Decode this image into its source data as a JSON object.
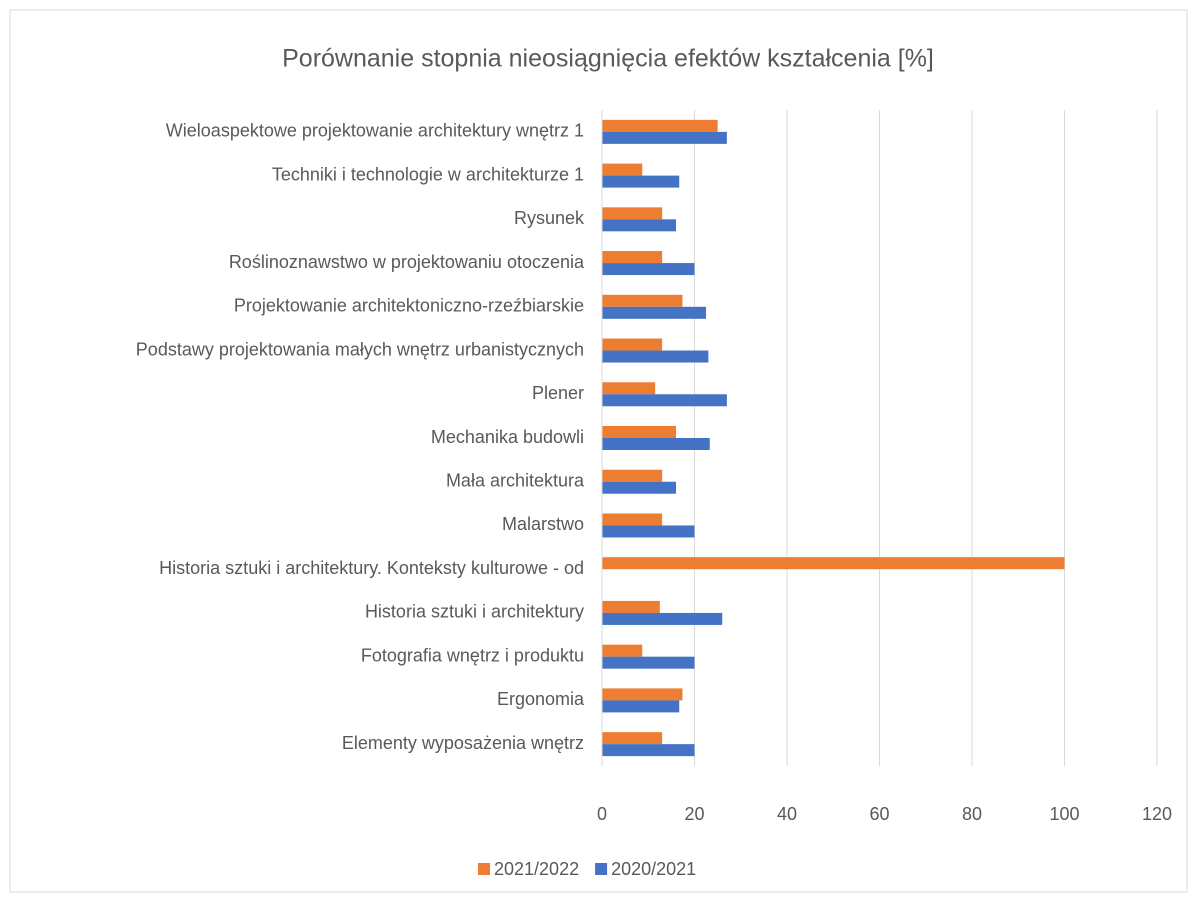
{
  "chart_data": {
    "type": "barh",
    "title": "Porównanie stopnia nieosiągnięcia efektów kształcenia [%]",
    "categories": [
      "Wieloaspektowe projektowanie architektury wnętrz 1",
      "Techniki i technologie w architekturze 1",
      "Rysunek",
      "Roślinoznawstwo w projektowaniu otoczenia",
      "Projektowanie architektoniczno-rzeźbiarskie",
      "Podstawy projektowania małych wnętrz urbanistycznych",
      "Plener",
      "Mechanika budowli",
      "Mała architektura",
      "Malarstwo",
      "Historia sztuki i architektury. Konteksty kulturowe - od",
      "Historia sztuki i architektury",
      "Fotografia wnętrz i produktu",
      "Ergonomia",
      "Elementy wyposażenia wnętrz"
    ],
    "series": [
      {
        "name": "2021/2022",
        "color": "#ed7d31",
        "values": [
          25,
          8.7,
          13,
          13,
          17.4,
          13,
          11.5,
          16,
          13,
          13,
          100,
          12.5,
          8.7,
          17.4,
          13
        ]
      },
      {
        "name": "2020/2021",
        "color": "#4472c4",
        "values": [
          27,
          16.7,
          16,
          20,
          22.5,
          23,
          27,
          23.3,
          16,
          20,
          null,
          26,
          20,
          16.7,
          20
        ]
      }
    ],
    "xlim": [
      0,
      120
    ],
    "xticks": [
      0,
      20,
      40,
      60,
      80,
      100,
      120
    ],
    "grid": true,
    "legend": "bottom"
  }
}
